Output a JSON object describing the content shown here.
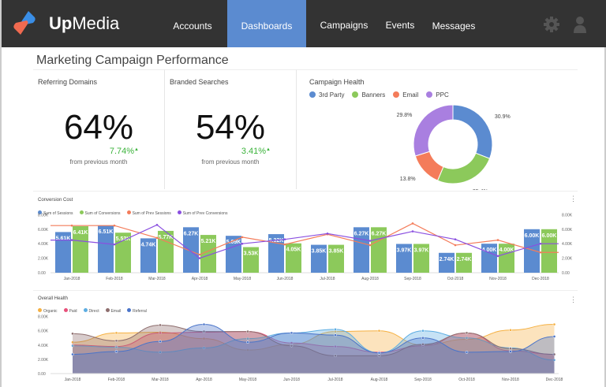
{
  "header": {
    "brand_bold": "Up",
    "brand_rest": "Media",
    "nav": [
      {
        "label": "Accounts",
        "active": false
      },
      {
        "label": "Dashboards",
        "active": true
      },
      {
        "label": "Campaigns",
        "active": false
      },
      {
        "label": "Events",
        "active": false
      },
      {
        "label": "Messages",
        "active": false
      }
    ],
    "icons": [
      "gear-icon",
      "user-icon"
    ]
  },
  "page_title": "Marketing Campaign Performance",
  "kpis": [
    {
      "label": "Referring Domains",
      "value": "64%",
      "change": "7.74%",
      "change_icon": "arrow-up-icon",
      "note": "from previous month"
    },
    {
      "label": "Branded Searches",
      "value": "54%",
      "change": "3.41%",
      "change_icon": "arrow-up-icon",
      "note": "from previous month"
    }
  ],
  "colors": {
    "blue": "#5b8bd0",
    "green": "#8cc95b",
    "orange": "#f47c5a",
    "purple": "#a97fe0",
    "positive": "#3bb33b",
    "header": "#333333"
  },
  "chart_data": [
    {
      "type": "pie",
      "title": "Campaign Health",
      "donut": true,
      "labels": [
        "3rd Party",
        "Banners",
        "Email",
        "PPC"
      ],
      "values": [
        30.9,
        25.4,
        13.8,
        29.8
      ],
      "data_labels": [
        "30.9%",
        "25.4%",
        "13.8%",
        "29.8%"
      ],
      "colors": [
        "#5b8bd0",
        "#8cc95b",
        "#f47c5a",
        "#a97fe0"
      ],
      "legend": "top-left"
    },
    {
      "type": "bar",
      "title": "Conversion Cost",
      "categories": [
        "Jan-2018",
        "Feb-2018",
        "Mar-2018",
        "Apr-2018",
        "May-2018",
        "Jun-2018",
        "Jul-2018",
        "Aug-2018",
        "Sep-2018",
        "Oct-2018",
        "Nov-2018",
        "Dec-2018"
      ],
      "yticks": [
        "0.00",
        "2.00K",
        "4.00K",
        "6.00K",
        "8.00K"
      ],
      "ylim": [
        0,
        8000
      ],
      "legend": "top-left",
      "series": [
        {
          "name": "Sum of Sessions",
          "kind": "bar",
          "color": "#5b8bd0",
          "values": [
            5610,
            6510,
            4740,
            6270,
            5090,
            5320,
            3850,
            6270,
            3970,
            2740,
            4000,
            6000
          ],
          "labels": [
            "5.61K",
            "6.51K",
            "4.74K",
            "6.27K",
            "5.09K",
            "5.32K",
            "3.85K",
            "6.27K",
            "3.97K",
            "2.74K",
            "4.00K",
            "6.00K"
          ]
        },
        {
          "name": "Sum of Conversions",
          "kind": "bar",
          "color": "#8cc95b",
          "values": [
            6410,
            5520,
            5770,
            5210,
            3530,
            4050,
            3850,
            6270,
            3970,
            2740,
            4000,
            6000
          ],
          "labels": [
            "6.41K",
            "5.52K",
            "5.77K",
            "5.21K",
            "3.53K",
            "4.05K",
            "3.85K",
            "6.27K",
            "3.97K",
            "2.74K",
            "4.00K",
            "6.00K"
          ]
        },
        {
          "name": "Sum of Prev Sessions",
          "kind": "line",
          "color": "#f47c5a",
          "values": [
            6500,
            6500,
            4800,
            2500,
            4900,
            3900,
            5300,
            3800,
            6800,
            3800,
            4500,
            2800
          ]
        },
        {
          "name": "Sum of Prev Conversions",
          "kind": "line",
          "color": "#8a4fe0",
          "values": [
            4500,
            3900,
            6600,
            2000,
            4000,
            4600,
            5400,
            4400,
            5700,
            4600,
            2300,
            4000
          ]
        }
      ]
    },
    {
      "type": "area",
      "title": "Overall Health",
      "categories": [
        "Jan-2018",
        "Feb-2018",
        "Mar-2018",
        "Apr-2018",
        "May-2018",
        "Jun-2018",
        "Jul-2018",
        "Aug-2018",
        "Sep-2018",
        "Oct-2018",
        "Nov-2018",
        "Dec-2018"
      ],
      "yticks": [
        "0.00",
        "2.00K",
        "4.00K",
        "6.00K",
        "8.00K"
      ],
      "ylim": [
        0,
        8000
      ],
      "legend": "top-left",
      "series": [
        {
          "name": "Organic",
          "color": "#f5b041",
          "values": [
            4400,
            5700,
            5800,
            4900,
            3300,
            4100,
            5900,
            6000,
            4000,
            4800,
            6100,
            6900
          ]
        },
        {
          "name": "Paid",
          "color": "#e8507a",
          "values": [
            4000,
            3800,
            5700,
            5800,
            5900,
            4300,
            3800,
            3000,
            3900,
            5700,
            3200,
            2700
          ]
        },
        {
          "name": "Direct",
          "color": "#5dade2",
          "values": [
            3900,
            3700,
            3000,
            3600,
            4900,
            5700,
            6200,
            2900,
            6000,
            5000,
            3600,
            1900
          ]
        },
        {
          "name": "Email",
          "color": "#8e6e6e",
          "values": [
            5600,
            4600,
            6800,
            5900,
            5900,
            3900,
            2500,
            2500,
            4100,
            5700,
            3500,
            2700
          ]
        },
        {
          "name": "Referral",
          "color": "#4a74c9",
          "values": [
            2700,
            3100,
            4500,
            6900,
            4400,
            5700,
            5400,
            2900,
            5000,
            3000,
            3100,
            5200
          ]
        }
      ]
    }
  ]
}
